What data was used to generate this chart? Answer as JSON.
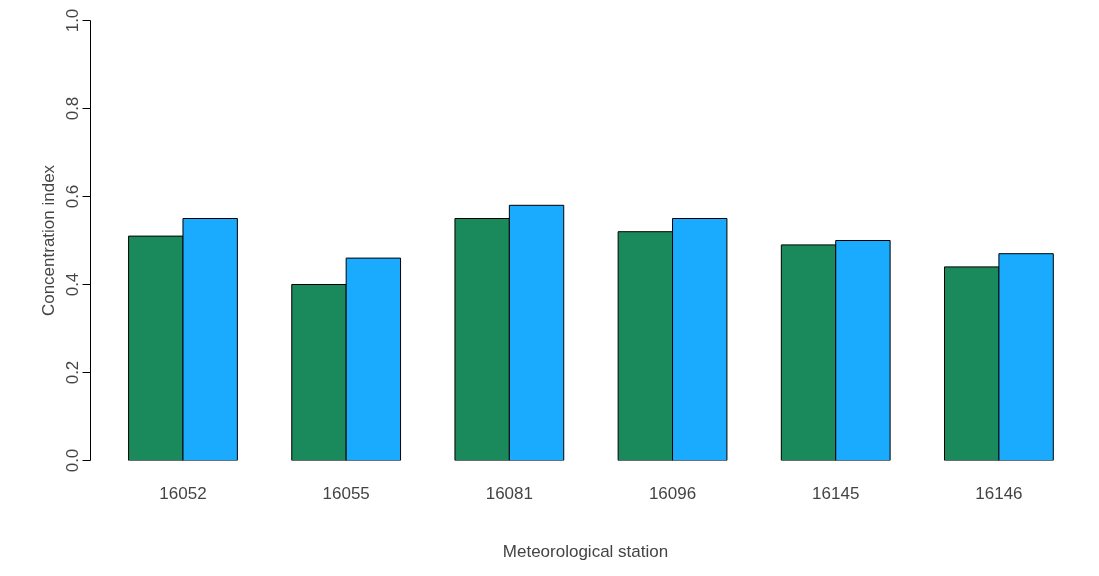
{
  "chart_data": {
    "type": "bar",
    "xlabel": "Meteorological station",
    "ylabel": "Concentration index",
    "categories": [
      "16052",
      "16055",
      "16081",
      "16096",
      "16145",
      "16146"
    ],
    "series": [
      {
        "color": "#1a8a5c",
        "values": [
          0.51,
          0.4,
          0.55,
          0.52,
          0.49,
          0.44
        ]
      },
      {
        "color": "#1aabff",
        "values": [
          0.55,
          0.46,
          0.58,
          0.55,
          0.5,
          0.47
        ]
      }
    ],
    "ylim": [
      0,
      1
    ],
    "yticks": [
      {
        "value": 0,
        "label": "0.0"
      },
      {
        "value": 0.2,
        "label": "0.2"
      },
      {
        "value": 0.4,
        "label": "0.4"
      },
      {
        "value": 0.6,
        "label": "0.6"
      },
      {
        "value": 0.8,
        "label": "0.8"
      },
      {
        "value": 1,
        "label": "1.0"
      }
    ],
    "grid": false
  }
}
